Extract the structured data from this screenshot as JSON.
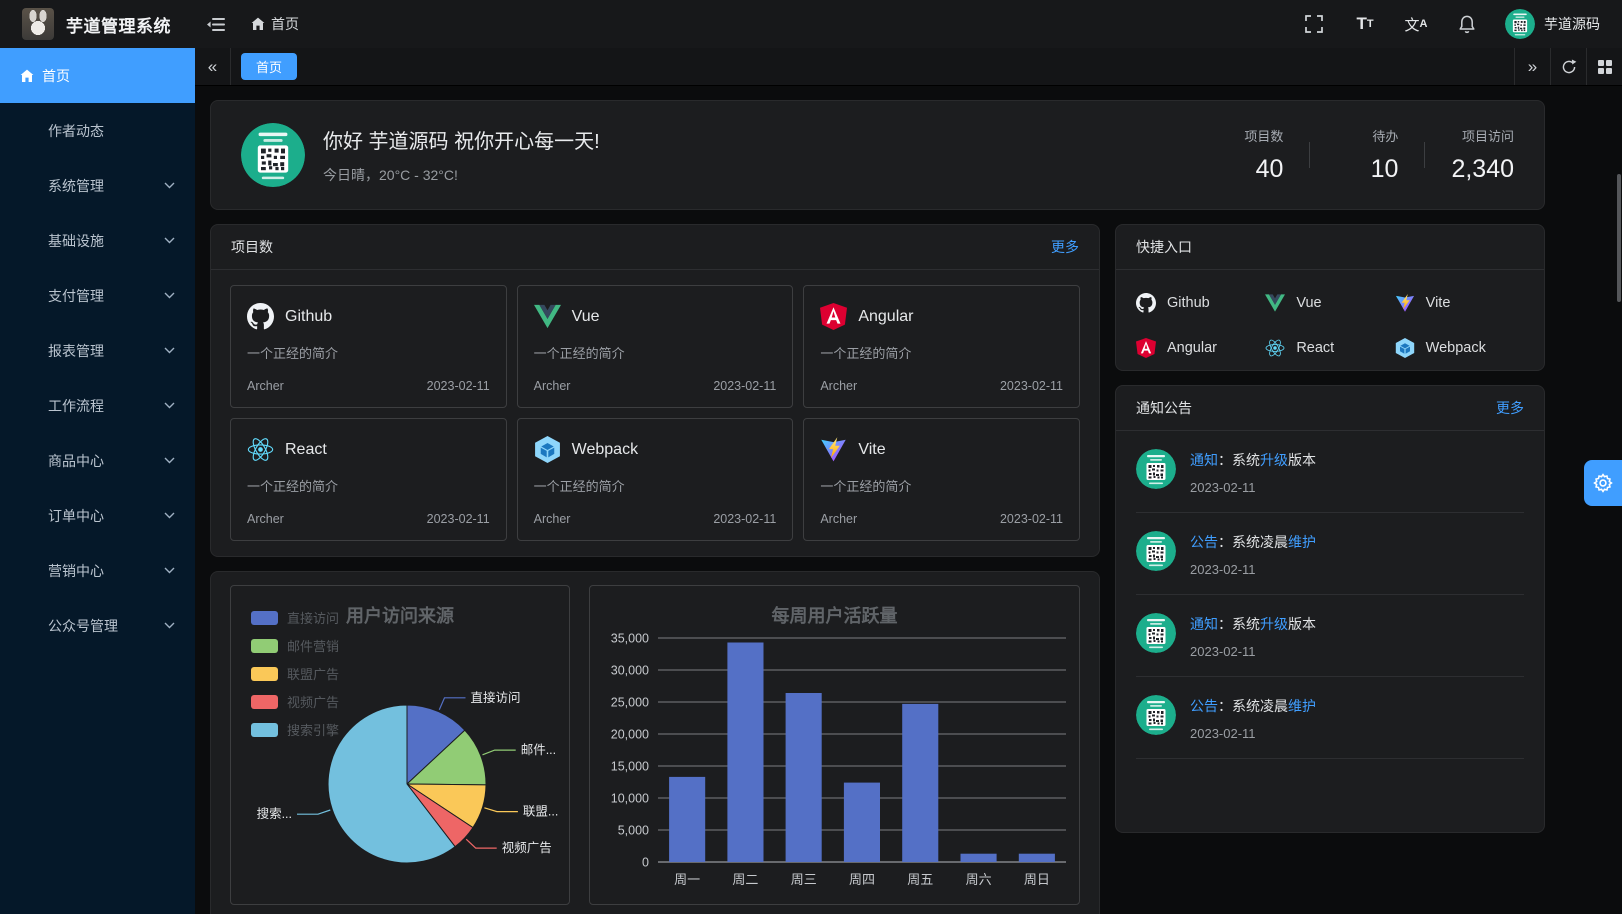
{
  "topbar": {
    "title": "芋道管理系统",
    "breadcrumb": "首页",
    "username": "芋道源码"
  },
  "sidebar": {
    "items": [
      {
        "label": "首页",
        "active": true,
        "expandable": false
      },
      {
        "label": "作者动态",
        "active": false,
        "expandable": false
      },
      {
        "label": "系统管理",
        "active": false,
        "expandable": true
      },
      {
        "label": "基础设施",
        "active": false,
        "expandable": true
      },
      {
        "label": "支付管理",
        "active": false,
        "expandable": true
      },
      {
        "label": "报表管理",
        "active": false,
        "expandable": true
      },
      {
        "label": "工作流程",
        "active": false,
        "expandable": true
      },
      {
        "label": "商品中心",
        "active": false,
        "expandable": true
      },
      {
        "label": "订单中心",
        "active": false,
        "expandable": true
      },
      {
        "label": "营销中心",
        "active": false,
        "expandable": true
      },
      {
        "label": "公众号管理",
        "active": false,
        "expandable": true
      }
    ]
  },
  "tabbar": {
    "tabs": [
      {
        "label": "首页",
        "active": true
      }
    ]
  },
  "greeting": {
    "title": "你好 芋道源码 祝你开心每一天!",
    "subtitle": "今日晴，20°C - 32°C!",
    "stats": [
      {
        "label": "项目数",
        "value": "40"
      },
      {
        "label": "待办",
        "value": "10"
      },
      {
        "label": "项目访问",
        "value": "2,340"
      }
    ]
  },
  "projects": {
    "title": "项目数",
    "more": "更多",
    "items": [
      {
        "name": "Github",
        "desc": "一个正经的简介",
        "author": "Archer",
        "date": "2023-02-11"
      },
      {
        "name": "Vue",
        "desc": "一个正经的简介",
        "author": "Archer",
        "date": "2023-02-11"
      },
      {
        "name": "Angular",
        "desc": "一个正经的简介",
        "author": "Archer",
        "date": "2023-02-11"
      },
      {
        "name": "React",
        "desc": "一个正经的简介",
        "author": "Archer",
        "date": "2023-02-11"
      },
      {
        "name": "Webpack",
        "desc": "一个正经的简介",
        "author": "Archer",
        "date": "2023-02-11"
      },
      {
        "name": "Vite",
        "desc": "一个正经的简介",
        "author": "Archer",
        "date": "2023-02-11"
      }
    ]
  },
  "quick": {
    "title": "快捷入口",
    "links": [
      {
        "label": "Github"
      },
      {
        "label": "Vue"
      },
      {
        "label": "Vite"
      },
      {
        "label": "Angular"
      },
      {
        "label": "React"
      },
      {
        "label": "Webpack"
      }
    ]
  },
  "notices": {
    "title": "通知公告",
    "more": "更多",
    "items": [
      {
        "prefix": "通知",
        "mid": "：系统",
        "highlight": "升级",
        "suffix": "版本",
        "date": "2023-02-11"
      },
      {
        "prefix": "公告",
        "mid": "：系统凌晨",
        "highlight": "维护",
        "suffix": "",
        "date": "2023-02-11"
      },
      {
        "prefix": "通知",
        "mid": "：系统",
        "highlight": "升级",
        "suffix": "版本",
        "date": "2023-02-11"
      },
      {
        "prefix": "公告",
        "mid": "：系统凌晨",
        "highlight": "维护",
        "suffix": "",
        "date": "2023-02-11"
      }
    ]
  },
  "chart_data": [
    {
      "type": "pie",
      "title": "用户访问来源",
      "legend": [
        "直接访问",
        "邮件营销",
        "联盟广告",
        "视频广告",
        "搜索引擎"
      ],
      "display_labels": [
        "直接访问",
        "邮件...",
        "联盟...",
        "视频广告",
        "搜索..."
      ],
      "values": [
        335,
        310,
        234,
        135,
        1548
      ],
      "colors": [
        "#5470c6",
        "#91cc75",
        "#fac858",
        "#ee6666",
        "#73c0de"
      ],
      "legend_position": "left"
    },
    {
      "type": "bar",
      "title": "每周用户活跃量",
      "categories": [
        "周一",
        "周二",
        "周三",
        "周四",
        "周五",
        "周六",
        "周日"
      ],
      "values": [
        13300,
        34300,
        26400,
        12400,
        24700,
        1300,
        1300
      ],
      "ylim": [
        0,
        35000
      ],
      "ytick_step": 5000,
      "bar_color": "#5470c6",
      "grid": true
    }
  ],
  "colors": {
    "accent": "#409eff",
    "sidebar_bg": "#051829",
    "panel_bg": "#1c1d1f",
    "qr_green": "#1cae8c"
  }
}
